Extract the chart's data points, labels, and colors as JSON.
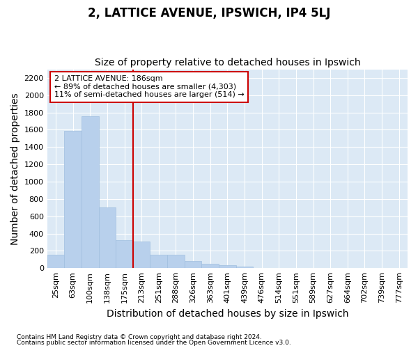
{
  "title": "2, LATTICE AVENUE, IPSWICH, IP4 5LJ",
  "subtitle": "Size of property relative to detached houses in Ipswich",
  "xlabel": "Distribution of detached houses by size in Ipswich",
  "ylabel": "Number of detached properties",
  "footnote1": "Contains HM Land Registry data © Crown copyright and database right 2024.",
  "footnote2": "Contains public sector information licensed under the Open Government Licence v3.0.",
  "categories": [
    "25sqm",
    "63sqm",
    "100sqm",
    "138sqm",
    "175sqm",
    "213sqm",
    "251sqm",
    "288sqm",
    "326sqm",
    "363sqm",
    "401sqm",
    "439sqm",
    "476sqm",
    "514sqm",
    "551sqm",
    "589sqm",
    "627sqm",
    "664sqm",
    "702sqm",
    "739sqm",
    "777sqm"
  ],
  "values": [
    155,
    1590,
    1760,
    700,
    320,
    310,
    155,
    155,
    85,
    50,
    30,
    20,
    0,
    0,
    0,
    0,
    0,
    0,
    0,
    0,
    0
  ],
  "bar_color": "#b8d0ec",
  "bar_edge_color": "#a0bfdf",
  "plot_bg_color": "#dce9f5",
  "fig_bg_color": "#ffffff",
  "grid_color": "#ffffff",
  "vline_x": 4.5,
  "vline_color": "#cc0000",
  "ylim": [
    0,
    2300
  ],
  "yticks": [
    0,
    200,
    400,
    600,
    800,
    1000,
    1200,
    1400,
    1600,
    1800,
    2000,
    2200
  ],
  "annotation_title": "2 LATTICE AVENUE: 186sqm",
  "annotation_line1": "← 89% of detached houses are smaller (4,303)",
  "annotation_line2": "11% of semi-detached houses are larger (514) →",
  "annotation_box_color": "#cc0000",
  "title_fontsize": 12,
  "subtitle_fontsize": 10,
  "axis_label_fontsize": 10,
  "tick_fontsize": 8,
  "annotation_fontsize": 8
}
